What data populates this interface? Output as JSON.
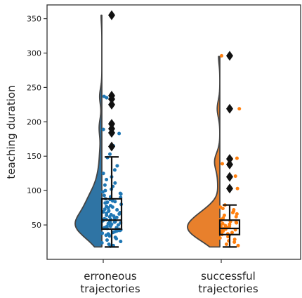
{
  "chart_data": {
    "type": "raincloud",
    "ylabel": "teaching duration",
    "xlabel": "",
    "ylim": [
      0,
      370
    ],
    "yticks": [
      50,
      100,
      150,
      200,
      250,
      300,
      350
    ],
    "grid": false,
    "categories": [
      "erroneous\ntrajectories",
      "successful\ntrajectories"
    ],
    "series": [
      {
        "category": "erroneous\ntrajectories",
        "color": "#2f74a4",
        "point_color": "#1f77b4",
        "violin_range": [
          18,
          355
        ],
        "box": {
          "whisker_low": 18,
          "q1": 44,
          "median": 57,
          "q3": 88,
          "whisker_high": 149
        },
        "outliers": [
          164,
          184,
          190,
          197,
          225,
          233,
          238,
          355
        ],
        "points": [
          355,
          238,
          237,
          235,
          198,
          196,
          189,
          183,
          165,
          153,
          148,
          136,
          130,
          125,
          120,
          116,
          111,
          108,
          106,
          102,
          100,
          98,
          96,
          95,
          93,
          91,
          90,
          88,
          87,
          85,
          84,
          83,
          82,
          80,
          78,
          77,
          76,
          75,
          73,
          72,
          71,
          70,
          69,
          68,
          67,
          66,
          65,
          64,
          63,
          62,
          61,
          60,
          59,
          58,
          58,
          57,
          56,
          55,
          55,
          54,
          53,
          52,
          52,
          51,
          50,
          50,
          49,
          48,
          48,
          47,
          46,
          46,
          45,
          44,
          44,
          43,
          42,
          42,
          41,
          40,
          39,
          38,
          37,
          36,
          35,
          34,
          32,
          30,
          28,
          26,
          24,
          22,
          20,
          19
        ]
      },
      {
        "category": "successful\ntrajectories",
        "color": "#e8802c",
        "point_color": "#ff7f0e",
        "violin_range": [
          18,
          295
        ],
        "box": {
          "whisker_low": 18,
          "q1": 36,
          "median": 45,
          "q3": 57,
          "whisker_high": 79
        },
        "outliers": [
          103,
          120,
          138,
          146,
          219,
          296
        ],
        "points": [
          296,
          219,
          219,
          147,
          146,
          140,
          139,
          121,
          103,
          79,
          76,
          74,
          72,
          70,
          68,
          66,
          64,
          62,
          60,
          58,
          57,
          56,
          55,
          54,
          53,
          52,
          51,
          50,
          49,
          48,
          47,
          46,
          45,
          44,
          43,
          42,
          41,
          40,
          39,
          38,
          37,
          36,
          35,
          33,
          31,
          29,
          27,
          25,
          22,
          20
        ]
      }
    ]
  }
}
